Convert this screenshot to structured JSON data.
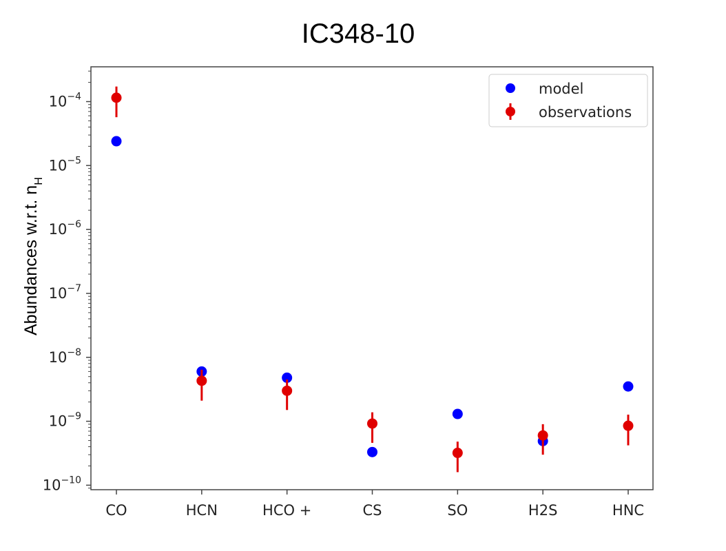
{
  "chart_data": {
    "type": "scatter",
    "title": "IC348-10",
    "ylabel_main": "Abundances w.r.t. n",
    "ylabel_sub": "H",
    "y_scale": "log",
    "ylim": [
      8.5e-11,
      0.00035
    ],
    "yticks": [
      {
        "base": "10",
        "exp": "−4",
        "value": 0.0001
      },
      {
        "base": "10",
        "exp": "−5",
        "value": 1e-05
      },
      {
        "base": "10",
        "exp": "−6",
        "value": 1e-06
      },
      {
        "base": "10",
        "exp": "−7",
        "value": 1e-07
      },
      {
        "base": "10",
        "exp": "−8",
        "value": 1e-08
      },
      {
        "base": "10",
        "exp": "−9",
        "value": 1e-09
      },
      {
        "base": "10",
        "exp": "−10",
        "value": 1e-10
      }
    ],
    "categories": [
      "CO",
      "HCN",
      "HCO +",
      "CS",
      "SO",
      "H2S",
      "HNC"
    ],
    "legend_position": "top-right",
    "grid": false,
    "series": [
      {
        "name": "model",
        "color": "#0000ff",
        "values": [
          2.4e-05,
          6e-09,
          4.8e-09,
          3.3e-10,
          1.3e-09,
          4.9e-10,
          3.5e-09
        ]
      },
      {
        "name": "observations",
        "color": "#e00000",
        "values": [
          0.000115,
          4.3e-09,
          3e-09,
          9.2e-10,
          3.2e-10,
          6e-10,
          8.5e-10
        ],
        "error_low": [
          5.7e-05,
          2.1e-09,
          1.5e-09,
          4.6e-10,
          1.6e-10,
          3e-10,
          4.2e-10
        ],
        "error_high": [
          0.000172,
          6.4e-09,
          4.5e-09,
          1.38e-09,
          4.8e-10,
          9e-10,
          1.27e-09
        ]
      }
    ]
  }
}
